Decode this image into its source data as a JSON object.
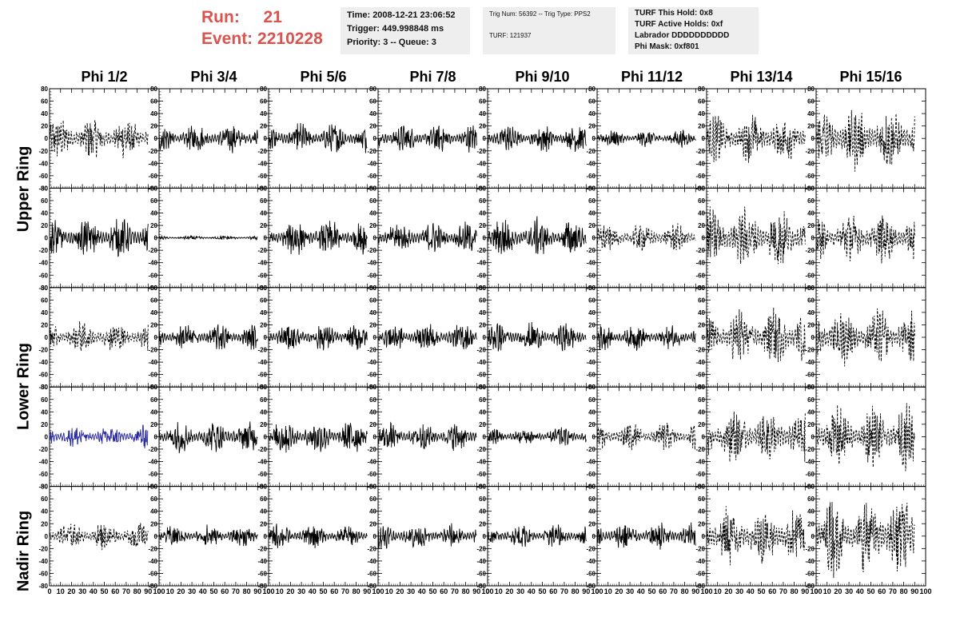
{
  "header": {
    "run_label": "Run:",
    "run_value": "21",
    "event_label": "Event:",
    "event_value": "2210228",
    "time": "Time: 2008-12-21 23:06:52",
    "trigger": "Trigger: 449.998848 ms",
    "priority": "Priority: 3 -- Queue: 3",
    "trig_num": "Trig Num: 56392 -- Trig Type: PPS2",
    "turf": "TURF: 121937",
    "turf_hold": "TURF This Hold: 0x8",
    "turf_active": "TURF Active Holds: 0xf",
    "labrador": "Labrador DDDDDDDDDD",
    "phi_mask": "Phi Mask: 0xf801"
  },
  "columns": [
    "Phi 1/2",
    "Phi 3/4",
    "Phi 5/6",
    "Phi 7/8",
    "Phi 9/10",
    "Phi 11/12",
    "Phi 13/14",
    "Phi 15/16"
  ],
  "ring_labels": [
    "Upper Ring",
    "Lower Ring",
    "Nadir Ring"
  ],
  "colors": {
    "run": "#d9534f",
    "trace": "#000000",
    "highlight_trace": "#2a2aa0",
    "info_bg": "#eeeeee"
  },
  "chart_data": {
    "type": "line",
    "title": "",
    "xlabel": "",
    "ylabel": "",
    "xlim": [
      0,
      100
    ],
    "ylim": [
      -80,
      80
    ],
    "x_ticks": [
      0,
      10,
      20,
      30,
      40,
      50,
      60,
      70,
      80,
      90,
      100
    ],
    "y_ticks": [
      80,
      60,
      40,
      20,
      0,
      -20,
      -40,
      -60,
      -80
    ],
    "rows": 5,
    "cols": 8,
    "panel_styles": [
      [
        "dashed",
        "solid",
        "solid",
        "solid",
        "solid",
        "solid",
        "dashed",
        "dashed"
      ],
      [
        "solid",
        "solid",
        "solid",
        "solid",
        "solid",
        "dashed",
        "dashed",
        "dashed"
      ],
      [
        "dashed",
        "solid",
        "solid",
        "solid",
        "solid",
        "solid",
        "dashed",
        "dashed"
      ],
      [
        "solid-blue",
        "solid",
        "solid",
        "solid",
        "solid",
        "dashed",
        "dashed",
        "dashed"
      ],
      [
        "dashed",
        "solid",
        "solid",
        "solid",
        "solid",
        "solid",
        "dashed",
        "dashed"
      ]
    ],
    "panel_amplitudes": [
      [
        30,
        20,
        22,
        20,
        20,
        12,
        35,
        45
      ],
      [
        28,
        3,
        25,
        22,
        28,
        20,
        42,
        35
      ],
      [
        22,
        18,
        20,
        20,
        20,
        18,
        40,
        40
      ],
      [
        16,
        22,
        25,
        20,
        14,
        20,
        38,
        45
      ],
      [
        20,
        16,
        18,
        18,
        16,
        20,
        42,
        55
      ]
    ],
    "grid": false,
    "legend": "none"
  }
}
